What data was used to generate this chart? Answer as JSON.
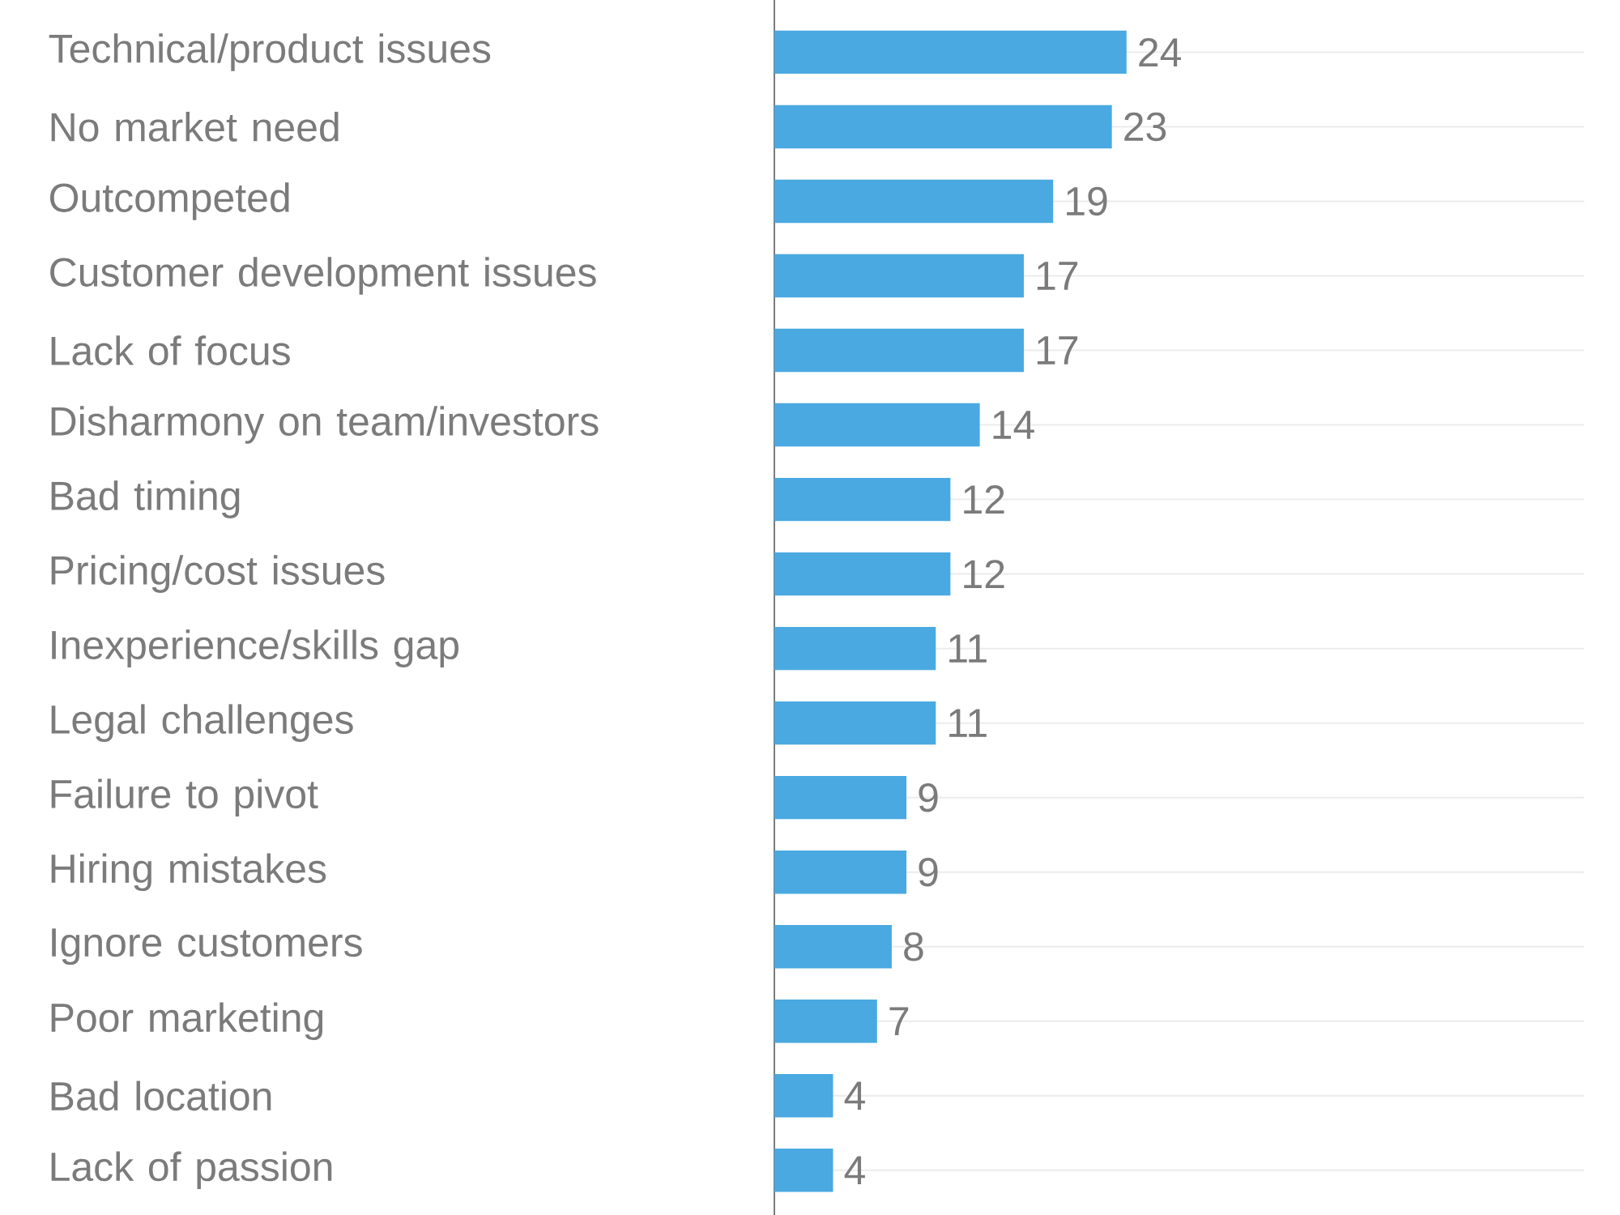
{
  "chart_data": {
    "type": "bar",
    "orientation": "horizontal",
    "data_labels": true,
    "grid": "y",
    "color": "#4aa9e1",
    "categories": [
      "Technical/product issues",
      "No market need",
      "Outcompeted",
      "Customer development issues",
      "Lack of focus",
      "Disharmony on team/investors",
      "Bad timing",
      "Pricing/cost issues",
      "Inexperience/skills gap",
      "Legal challenges",
      "Failure to pivot",
      "Hiring mistakes",
      "Ignore customers",
      "Poor marketing",
      "Bad location",
      "Lack of passion"
    ],
    "values": [
      24,
      23,
      19,
      17,
      17,
      14,
      12,
      12,
      11,
      11,
      9,
      9,
      8,
      7,
      4,
      4
    ]
  }
}
